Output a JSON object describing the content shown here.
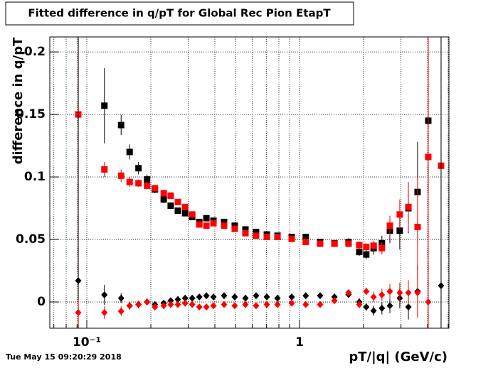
{
  "chart_data": {
    "type": "scatter",
    "title": "Fitted difference in q/pT for Global Rec Pion EtapT",
    "x_label": "pT/|q| (GeV/c)",
    "y_label": "difference in q/pT",
    "footer": "Tue May 15 09:20:29 2018",
    "xlog": true,
    "grid": true,
    "xlim": [
      0.067,
      5.04
    ],
    "ylim": [
      -0.021,
      0.212
    ],
    "xticks": [
      {
        "value": 0.1,
        "label": "10⁻¹"
      },
      1
    ],
    "xminorticks": [
      0.07,
      0.08,
      0.09,
      0.2,
      0.3,
      0.4,
      0.5,
      0.6,
      0.7,
      0.8,
      0.9,
      2,
      3,
      4,
      5
    ],
    "yticks": [
      0,
      0.05,
      0.1,
      0.15,
      0.2
    ],
    "x": [
      0.0912,
      0.121,
      0.145,
      0.159,
      0.175,
      0.192,
      0.209,
      0.23,
      0.248,
      0.268,
      0.29,
      0.313,
      0.338,
      0.365,
      0.394,
      0.442,
      0.496,
      0.557,
      0.625,
      0.702,
      0.788,
      0.919,
      1.07,
      1.25,
      1.46,
      1.7,
      1.91,
      2.06,
      2.23,
      2.44,
      2.66,
      2.96,
      3.25,
      3.59,
      4.03,
      4.63
    ],
    "series": [
      {
        "name": "black-squares",
        "color": "#000000",
        "marker": "square",
        "values": [
          null,
          0.157,
          0.1415,
          0.12,
          0.107,
          0.098,
          0.09,
          0.082,
          0.077,
          0.073,
          0.071,
          0.068,
          0.064,
          0.067,
          0.065,
          0.064,
          0.061,
          0.058,
          0.056,
          0.054,
          0.053,
          0.052,
          0.052,
          0.048,
          0.047,
          0.048,
          0.04,
          0.038,
          0.043,
          0.047,
          0.057,
          0.057,
          0.075,
          0.088,
          0.145,
          null
        ],
        "errors": [
          null,
          0.03,
          0.008,
          0.006,
          0.005,
          0.004,
          0.003,
          0.003,
          0.002,
          0.002,
          0.002,
          0.002,
          0.002,
          0.002,
          0.002,
          0.002,
          0.002,
          0.002,
          0.002,
          0.002,
          0.002,
          0.002,
          0.002,
          0.002,
          0.002,
          0.003,
          0.003,
          0.004,
          0.005,
          0.006,
          0.01,
          0.015,
          0.02,
          0.04,
          0.06,
          null
        ]
      },
      {
        "name": "red-squares",
        "color": "#ff0000",
        "marker": "square",
        "values": [
          0.15,
          0.106,
          0.101,
          0.096,
          0.095,
          0.093,
          0.091,
          0.087,
          0.085,
          0.08,
          0.076,
          0.07,
          0.062,
          0.061,
          0.063,
          0.061,
          0.0585,
          0.055,
          0.053,
          0.052,
          0.052,
          0.0505,
          0.048,
          0.0466,
          0.0466,
          0.0466,
          0.0455,
          0.044,
          0.045,
          0.043,
          0.061,
          0.07,
          0.076,
          0.06,
          0.116,
          0.109
        ],
        "errors": [
          0.2,
          0.006,
          0.005,
          0.004,
          0.003,
          0.003,
          0.002,
          0.002,
          0.002,
          0.002,
          0.002,
          0.002,
          0.002,
          0.002,
          0.002,
          0.002,
          0.002,
          0.002,
          0.002,
          0.002,
          0.002,
          0.002,
          0.002,
          0.002,
          0.002,
          0.002,
          0.003,
          0.003,
          0.004,
          0.005,
          0.008,
          0.012,
          0.02,
          0.04,
          0.15,
          0.2
        ]
      },
      {
        "name": "black-diamonds",
        "color": "#000000",
        "marker": "diamond",
        "values": [
          0.017,
          0.0057,
          0.003,
          -0.003,
          -0.002,
          0,
          -0.002,
          -0.001,
          0.001,
          0.002,
          0.003,
          0.003,
          0.004,
          0.005,
          0.004,
          0.005,
          0.004,
          0.003,
          0.005,
          0.004,
          0.003,
          0.004,
          0.005,
          0.005,
          0.004,
          0.006,
          0,
          -0.004,
          -0.007,
          -0.005,
          -0.003,
          0.003,
          -0.004,
          0.0085,
          null,
          0.013
        ],
        "errors": [
          0.2,
          0.008,
          0.004,
          0.003,
          0.003,
          0.002,
          0.002,
          0.002,
          0.002,
          0.002,
          0.002,
          0.002,
          0.002,
          0.002,
          0.002,
          0.002,
          0.002,
          0.002,
          0.002,
          0.002,
          0.002,
          0.002,
          0.002,
          0.002,
          0.002,
          0.002,
          0.003,
          0.003,
          0.004,
          0.005,
          0.006,
          0.008,
          0.01,
          0.02,
          null,
          0.2
        ]
      },
      {
        "name": "red-diamonds",
        "color": "#ff0000",
        "marker": "diamond",
        "values": [
          -0.0085,
          -0.0085,
          -0.0074,
          -0.003,
          -0.002,
          0,
          -0.004,
          -0.003,
          -0.002,
          -0.002,
          -0.001,
          -0.002,
          -0.004,
          -0.004,
          -0.003,
          -0.002,
          -0.003,
          -0.002,
          -0.003,
          -0.002,
          -0.002,
          -0.001,
          -0.002,
          -0.002,
          0.001,
          0.0074,
          -0.002,
          0.0085,
          0.004,
          0.0057,
          0.0085,
          0.0074,
          0.0074,
          0.0074,
          0,
          null
        ],
        "errors": [
          0.01,
          0.005,
          0.004,
          0.003,
          0.003,
          0.002,
          0.002,
          0.002,
          0.002,
          0.002,
          0.002,
          0.002,
          0.002,
          0.002,
          0.002,
          0.002,
          0.002,
          0.002,
          0.002,
          0.002,
          0.002,
          0.002,
          0.002,
          0.002,
          0.002,
          0.002,
          0.003,
          0.003,
          0.004,
          0.005,
          0.006,
          0.008,
          0.01,
          0.02,
          0.04,
          null
        ]
      }
    ]
  }
}
